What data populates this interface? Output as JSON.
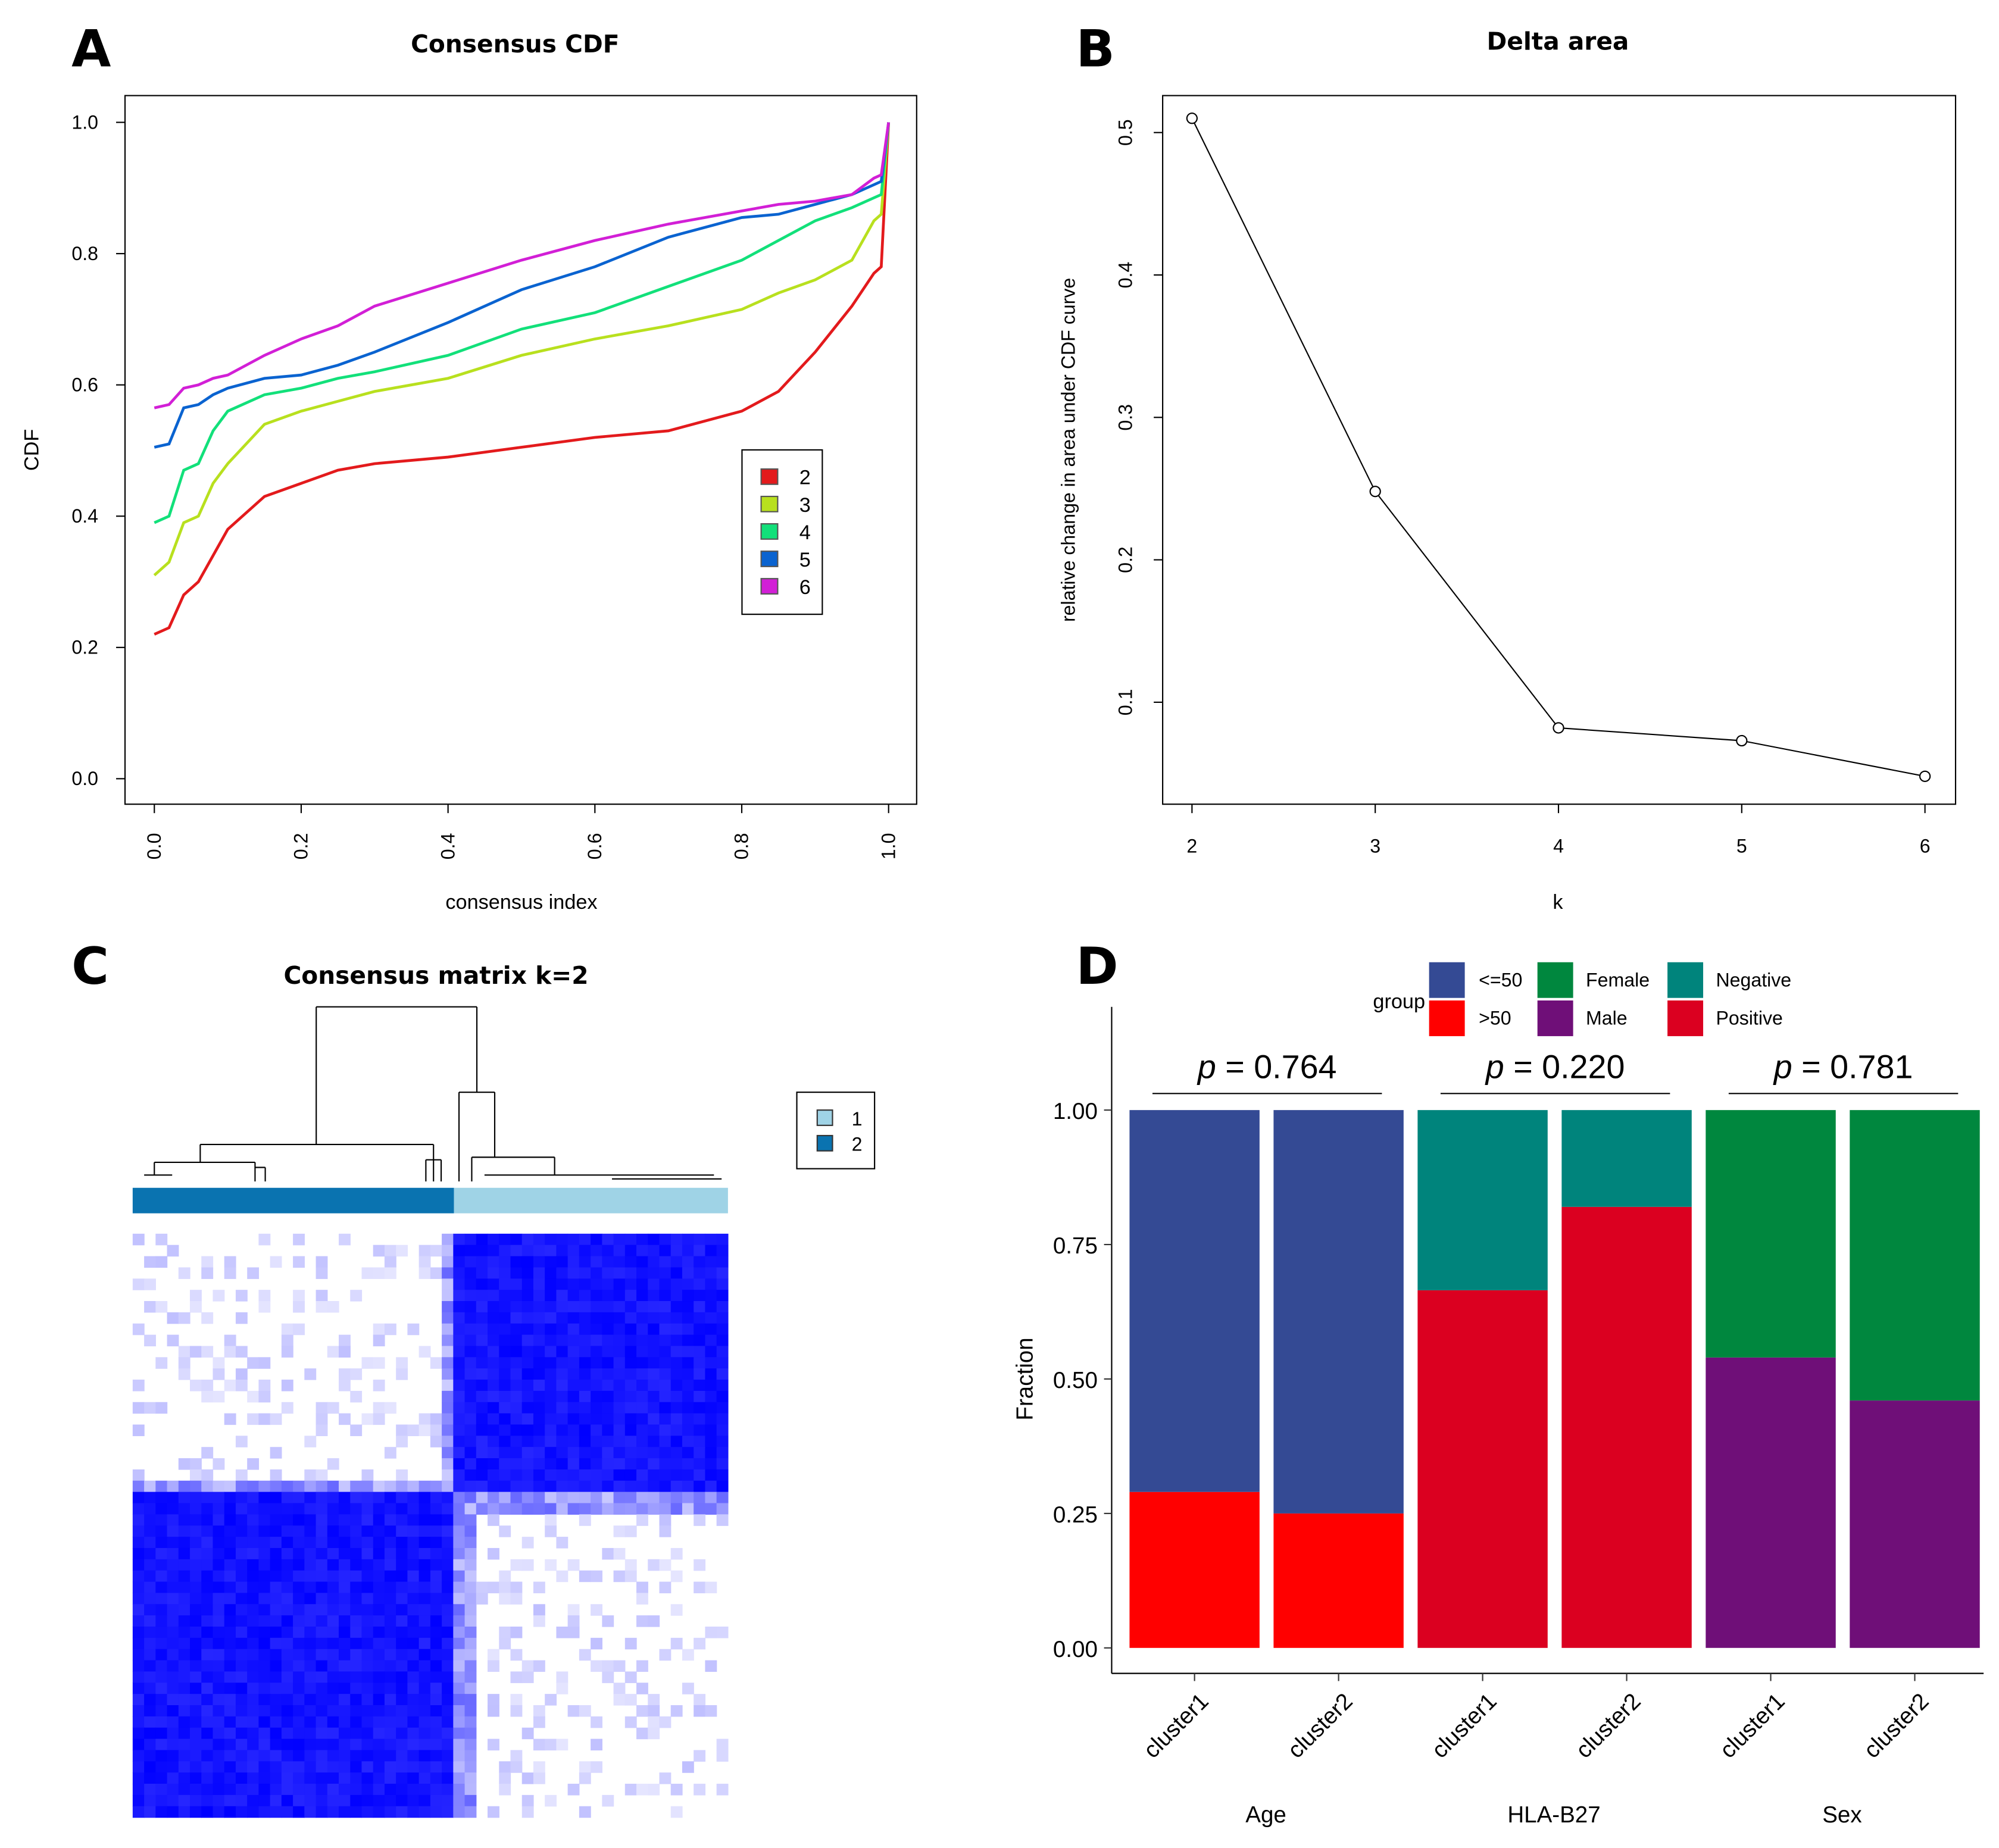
{
  "chart_data": [
    {
      "panel": "A",
      "type": "line",
      "title": "Consensus CDF",
      "xlabel": "consensus index",
      "ylabel": "CDF",
      "xlim": [
        0,
        1
      ],
      "ylim": [
        0,
        1
      ],
      "xticks": [
        "0.0",
        "0.2",
        "0.4",
        "0.6",
        "0.8",
        "1.0"
      ],
      "yticks": [
        "0.0",
        "0.2",
        "0.4",
        "0.6",
        "0.8",
        "1.0"
      ],
      "legend_position": "right-center",
      "x": [
        0,
        0.02,
        0.04,
        0.06,
        0.08,
        0.1,
        0.15,
        0.2,
        0.25,
        0.3,
        0.4,
        0.5,
        0.6,
        0.7,
        0.8,
        0.85,
        0.9,
        0.95,
        0.98,
        0.99,
        1.0
      ],
      "series": [
        {
          "name": "2",
          "color": "#e31a1c",
          "values": [
            0.22,
            0.23,
            0.28,
            0.3,
            0.34,
            0.38,
            0.43,
            0.45,
            0.47,
            0.48,
            0.49,
            0.505,
            0.52,
            0.53,
            0.56,
            0.59,
            0.65,
            0.72,
            0.77,
            0.78,
            1.0
          ]
        },
        {
          "name": "3",
          "color": "#b8e01e",
          "values": [
            0.31,
            0.33,
            0.39,
            0.4,
            0.45,
            0.48,
            0.54,
            0.56,
            0.575,
            0.59,
            0.61,
            0.645,
            0.67,
            0.69,
            0.715,
            0.74,
            0.76,
            0.79,
            0.85,
            0.86,
            1.0
          ]
        },
        {
          "name": "4",
          "color": "#12e07a",
          "values": [
            0.39,
            0.4,
            0.47,
            0.48,
            0.53,
            0.56,
            0.585,
            0.595,
            0.61,
            0.62,
            0.645,
            0.685,
            0.71,
            0.75,
            0.79,
            0.82,
            0.85,
            0.87,
            0.885,
            0.89,
            1.0
          ]
        },
        {
          "name": "5",
          "color": "#0a63d0",
          "values": [
            0.505,
            0.51,
            0.565,
            0.57,
            0.585,
            0.595,
            0.61,
            0.615,
            0.63,
            0.65,
            0.695,
            0.745,
            0.78,
            0.825,
            0.855,
            0.86,
            0.875,
            0.89,
            0.905,
            0.91,
            1.0
          ]
        },
        {
          "name": "6",
          "color": "#d21fd6",
          "values": [
            0.565,
            0.57,
            0.595,
            0.6,
            0.61,
            0.615,
            0.645,
            0.67,
            0.69,
            0.72,
            0.755,
            0.79,
            0.82,
            0.845,
            0.865,
            0.875,
            0.88,
            0.89,
            0.915,
            0.92,
            1.0
          ]
        }
      ]
    },
    {
      "panel": "B",
      "type": "line",
      "title": "Delta area",
      "xlabel": "k",
      "ylabel": "relative change in area under CDF curve",
      "x": [
        2,
        3,
        4,
        5,
        6
      ],
      "values": [
        0.51,
        0.248,
        0.082,
        0.073,
        0.048
      ],
      "xticks": [
        "2",
        "3",
        "4",
        "5",
        "6"
      ],
      "yticks": [
        "0.1",
        "0.2",
        "0.3",
        "0.4",
        "0.5"
      ]
    },
    {
      "panel": "C",
      "type": "heatmap",
      "title": "Consensus matrix k=2",
      "legend": [
        {
          "name": "1",
          "color": "#9fd3e6"
        },
        {
          "name": "2",
          "color": "#0a73b0"
        }
      ],
      "cell_color": "#0000ff"
    },
    {
      "panel": "D",
      "type": "bar",
      "stacked": true,
      "ylabel": "Fraction",
      "ylim": [
        0,
        1
      ],
      "yticks": [
        "0.00",
        "0.25",
        "0.50",
        "0.75",
        "1.00"
      ],
      "legend_title": "group",
      "legend_position": "top",
      "legend": [
        {
          "name": "<=50",
          "color": "#344a94"
        },
        {
          "name": ">50",
          "color": "#ff0000"
        },
        {
          "name": "Female",
          "color": "#00873e"
        },
        {
          "name": "Male",
          "color": "#6f0f78"
        },
        {
          "name": "Negative",
          "color": "#00847c"
        },
        {
          "name": "Positive",
          "color": "#db0020"
        }
      ],
      "groups": [
        {
          "name": "Age",
          "p_label": "p",
          "p_value": "= 0.764",
          "categories": [
            "cluster1",
            "cluster2"
          ],
          "series": [
            {
              "name": ">50",
              "color": "#ff0000",
              "values": [
                0.29,
                0.25
              ]
            },
            {
              "name": "<=50",
              "color": "#344a94",
              "values": [
                0.71,
                0.75
              ]
            }
          ]
        },
        {
          "name": "HLA-B27",
          "p_label": "p",
          "p_value": "= 0.220",
          "categories": [
            "cluster1",
            "cluster2"
          ],
          "series": [
            {
              "name": "Positive",
              "color": "#db0020",
              "values": [
                0.665,
                0.82
              ]
            },
            {
              "name": "Negative",
              "color": "#00847c",
              "values": [
                0.335,
                0.18
              ]
            }
          ]
        },
        {
          "name": "Sex",
          "p_label": "p",
          "p_value": "= 0.781",
          "categories": [
            "cluster1",
            "cluster2"
          ],
          "series": [
            {
              "name": "Male",
              "color": "#6f0f78",
              "values": [
                0.54,
                0.46
              ]
            },
            {
              "name": "Female",
              "color": "#00873e",
              "values": [
                0.46,
                0.54
              ]
            }
          ]
        }
      ]
    }
  ],
  "panel_labels": [
    "A",
    "B",
    "C",
    "D"
  ]
}
